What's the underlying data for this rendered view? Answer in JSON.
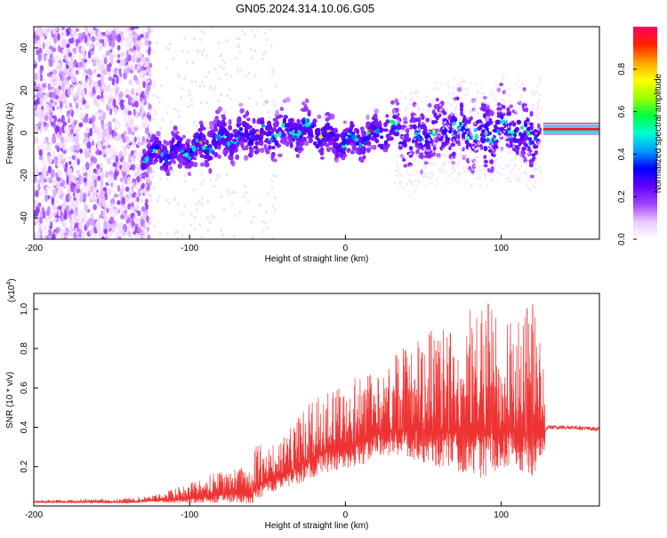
{
  "title": "GN05.2024.314.10.06.G05",
  "chart_data": [
    {
      "type": "heatmap",
      "xlabel": "Height of straight line (km)",
      "ylabel": "Frequency (Hz)",
      "xlim": [
        -200,
        163
      ],
      "ylim": [
        -50,
        50
      ],
      "xticks": [
        -200,
        -100,
        0,
        100
      ],
      "yticks": [
        -40,
        -20,
        0,
        20,
        40
      ],
      "colorbar": {
        "label": "Normalized spectral amplitude",
        "range": [
          0,
          1
        ],
        "ticks": [
          0.0,
          0.2,
          0.4,
          0.6,
          0.8
        ],
        "tick_labels": [
          "0.0",
          "0.2",
          "0.4",
          "0.6",
          "0.8"
        ],
        "colors": [
          "#ffffff",
          "#e8c8ff",
          "#a040ff",
          "#6000ff",
          "#0000ff",
          "#00a0ff",
          "#00ffd0",
          "#00ff40",
          "#a0ff00",
          "#ffff00",
          "#ffa000",
          "#ff2000",
          "#ff0060"
        ]
      },
      "ridge": {
        "x": [
          -130,
          -120,
          -110,
          -100,
          -90,
          -80,
          -70,
          -60,
          -50,
          -40,
          -30,
          -20,
          -10,
          0,
          10,
          20,
          30,
          40,
          50,
          60,
          70,
          80,
          90,
          100,
          110,
          120,
          125,
          140,
          163
        ],
        "freq": [
          -11,
          -10,
          -9,
          -8,
          -6,
          -3,
          -2,
          0,
          -1,
          1,
          2,
          1,
          -2,
          -4,
          -3,
          -1,
          2,
          -5,
          -1,
          1,
          2,
          0,
          -1,
          3,
          1,
          -2,
          2,
          2,
          2
        ],
        "spread": [
          3,
          4,
          4,
          4,
          5,
          5,
          5,
          5,
          5,
          5,
          5,
          5,
          4,
          4,
          4,
          4,
          5,
          6,
          6,
          7,
          8,
          7,
          8,
          7,
          7,
          8,
          1,
          1,
          1
        ]
      },
      "noise_region": [
        -200,
        -125
      ]
    },
    {
      "type": "line",
      "xlabel": "Height of straight line (km)",
      "ylabel": "SNR (10 * v/v)",
      "y_multiplier": "(x10",
      "y_multiplier_exp": "4",
      "y_multiplier_close": ")",
      "xlim": [
        -200,
        163
      ],
      "ylim": [
        0,
        1.08
      ],
      "xticks": [
        -200,
        -100,
        0,
        100
      ],
      "yticks": [
        0.2,
        0.4,
        0.6,
        0.8,
        1.0
      ],
      "ytick_labels": [
        "0.2",
        "0.4",
        "0.6",
        "0.8",
        "1.0"
      ],
      "color": "#ee3333",
      "envelope": {
        "x": [
          -200,
          -140,
          -120,
          -100,
          -90,
          -80,
          -70,
          -60,
          -58,
          -40,
          -30,
          -20,
          -10,
          0,
          10,
          20,
          30,
          40,
          50,
          60,
          70,
          80,
          88,
          95,
          100,
          110,
          120,
          128,
          130,
          145,
          163
        ],
        "base": [
          0.02,
          0.02,
          0.03,
          0.04,
          0.05,
          0.06,
          0.07,
          0.05,
          0.1,
          0.16,
          0.2,
          0.25,
          0.28,
          0.3,
          0.33,
          0.36,
          0.38,
          0.38,
          0.39,
          0.38,
          0.38,
          0.38,
          0.38,
          0.38,
          0.38,
          0.38,
          0.38,
          0.38,
          0.4,
          0.4,
          0.39
        ],
        "peak": [
          0.03,
          0.04,
          0.06,
          0.12,
          0.15,
          0.18,
          0.22,
          0.16,
          0.3,
          0.35,
          0.45,
          0.55,
          0.58,
          0.62,
          0.7,
          0.65,
          0.75,
          0.82,
          0.88,
          0.9,
          0.95,
          1.0,
          1.08,
          0.98,
          0.9,
          0.95,
          1.03,
          0.7,
          0.42,
          0.42,
          0.41
        ]
      }
    }
  ]
}
